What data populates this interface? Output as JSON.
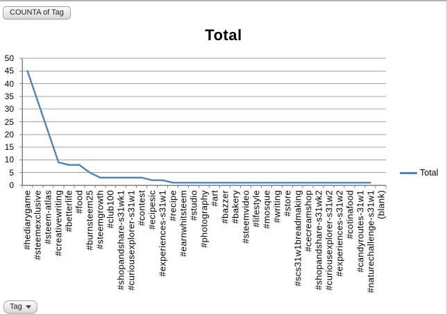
{
  "pivot": {
    "counta_button_label": "COUNTA of Tag",
    "tag_button_label": "Tag"
  },
  "chart_data": {
    "type": "line",
    "title": "Total",
    "xlabel": "",
    "ylabel": "",
    "ylim": [
      0,
      50
    ],
    "ytick_step": 5,
    "grid": true,
    "legend_position": "right",
    "categories": [
      "#hediarygame",
      "#steemexclusive",
      "#steem-atlas",
      "#creativewriting",
      "#betterlife",
      "#food",
      "#burnsteem25",
      "#steemgrowth",
      "#club100",
      "#shopandshare-s31wk1",
      "#curiousexplorer-s31w1",
      "#contest",
      "#ecipesic",
      "#experiences-s31w1",
      "#recipe",
      "#earnwhitsteem",
      "#studio",
      "#photography",
      "#art",
      "#bazzer",
      "#bakery",
      "#steemvideo",
      "#lifestyle",
      "#mosque",
      "#writing",
      "#store",
      "#scs31w1breadmaking",
      "#cecreamshop",
      "#shopandshare-s31wk2",
      "#curiousexplorer-s31w2",
      "#experiences-s31w2",
      "#cotinafood",
      "#candyroutes-31w1",
      "#naturechallenge-s31w1",
      "(blank)"
    ],
    "series": [
      {
        "name": "Total",
        "color": "#4F81BD",
        "values": [
          45,
          33,
          21,
          9,
          8,
          8,
          5,
          3,
          3,
          3,
          3,
          3,
          2,
          2,
          1,
          1,
          1,
          1,
          1,
          1,
          1,
          1,
          1,
          1,
          1,
          1,
          1,
          1,
          1,
          1,
          1,
          1,
          1,
          1,
          null
        ]
      }
    ]
  },
  "colors": {
    "series_line": "#4F81BD",
    "gridline": "#a0a0a0",
    "axis": "#808080"
  }
}
